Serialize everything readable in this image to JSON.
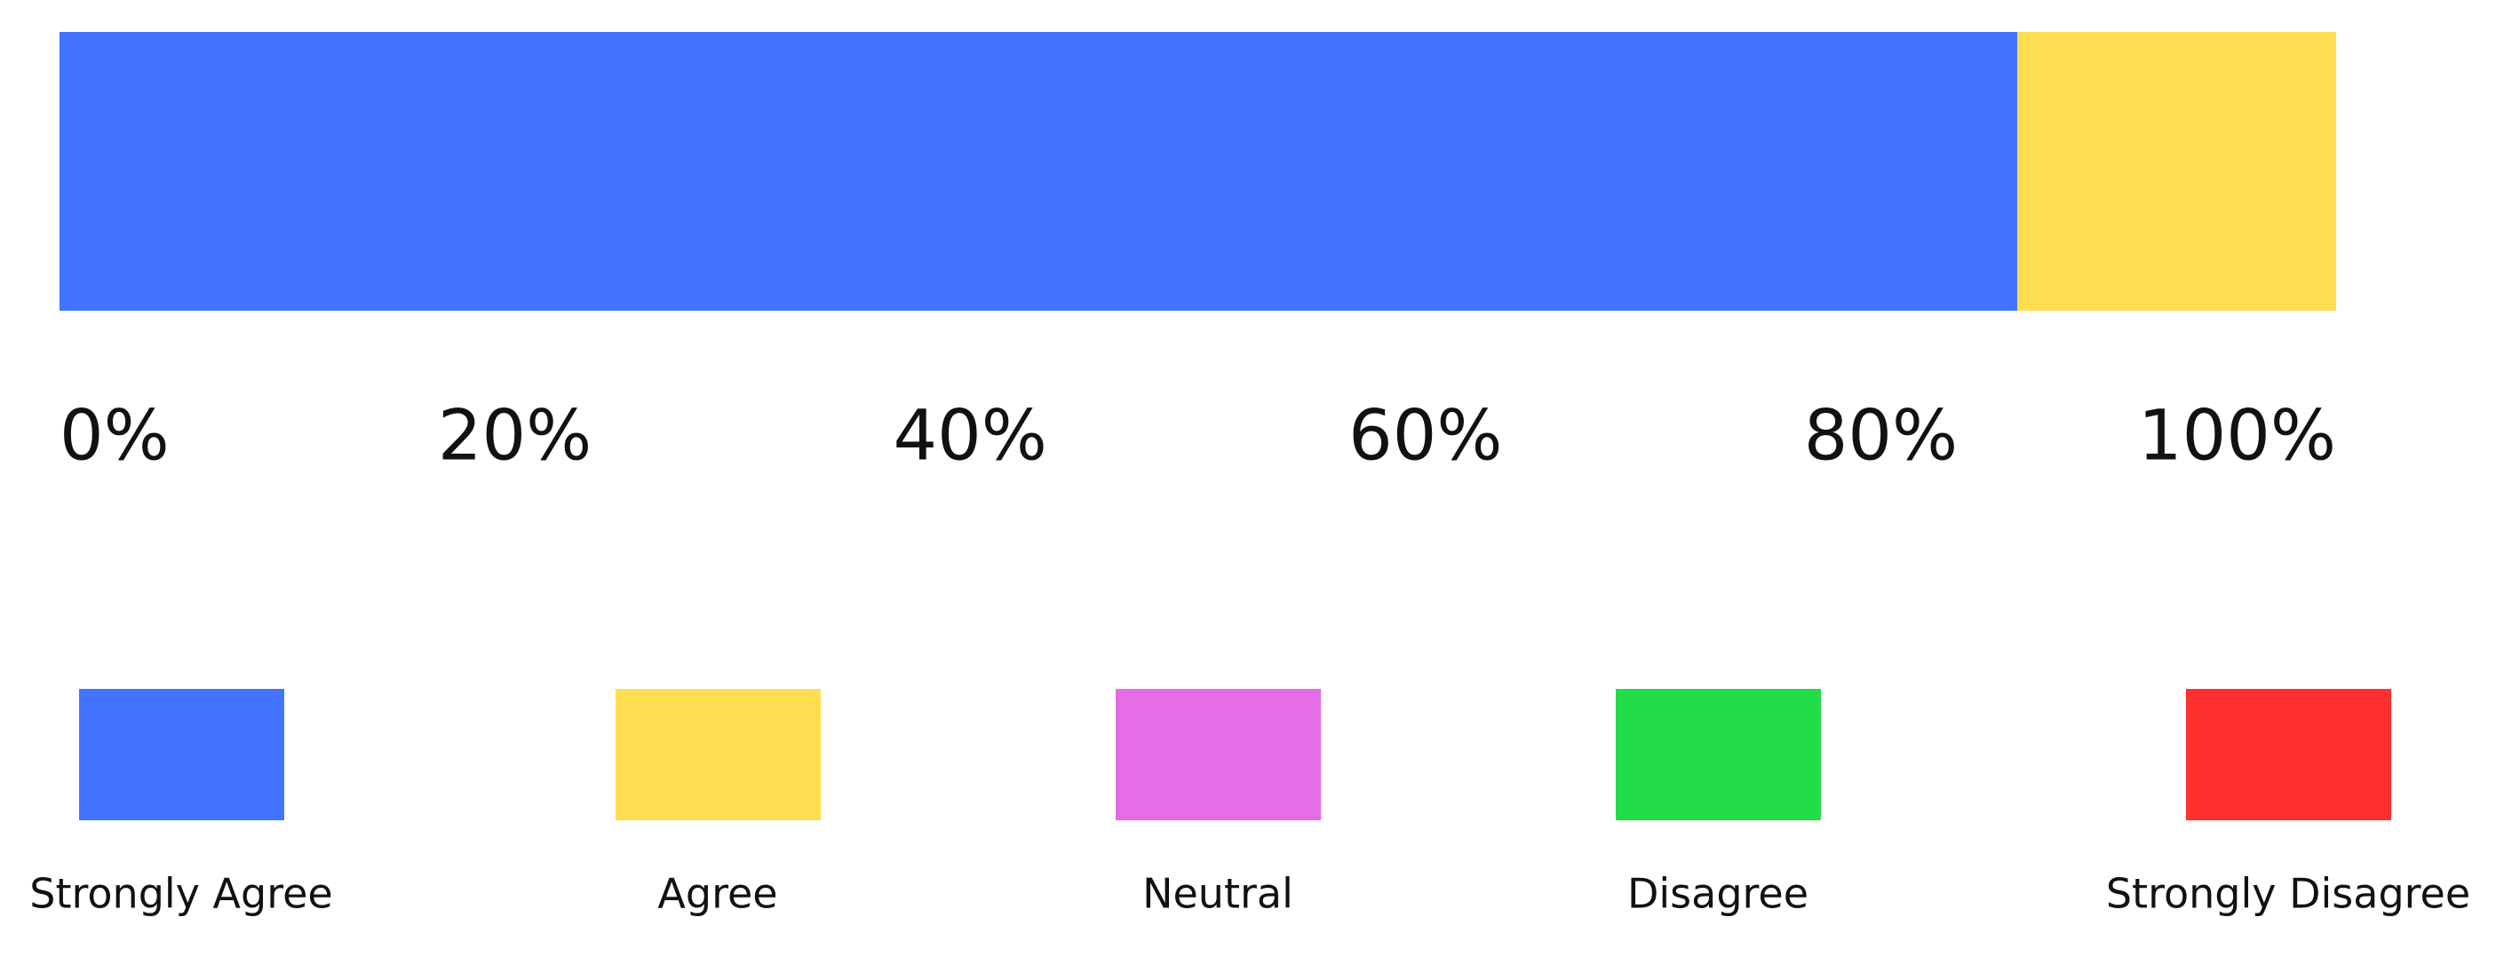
{
  "chart_data": {
    "type": "bar",
    "orientation": "horizontal",
    "stacked": true,
    "categories": [
      null
    ],
    "series": [
      {
        "name": "Strongly Agree",
        "color": "#4374ff",
        "values": [
          86
        ]
      },
      {
        "name": "Agree",
        "color": "#ffdd50",
        "values": [
          14
        ]
      },
      {
        "name": "Neutral",
        "color": "#e46ce5",
        "values": [
          0
        ]
      },
      {
        "name": "Disagree",
        "color": "#22dc48",
        "values": [
          0
        ]
      },
      {
        "name": "Strongly Disagree",
        "color": "#ff3030",
        "values": [
          0
        ]
      }
    ],
    "xlim": [
      0,
      100
    ],
    "xticks": [
      {
        "value": 0,
        "label": "0%"
      },
      {
        "value": 20,
        "label": "20%"
      },
      {
        "value": 40,
        "label": "40%"
      },
      {
        "value": 60,
        "label": "60%"
      },
      {
        "value": 80,
        "label": "80%"
      },
      {
        "value": 100,
        "label": "100%"
      }
    ],
    "legend": "bottom"
  }
}
